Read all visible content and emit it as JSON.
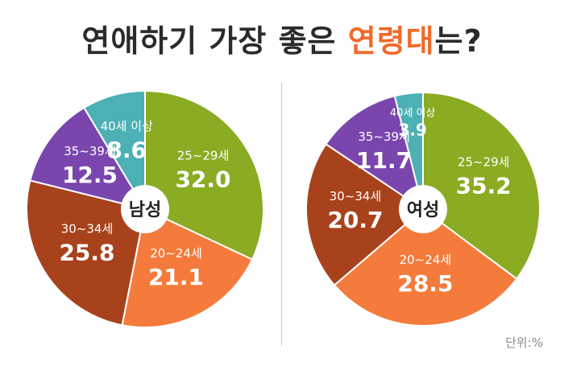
{
  "title": {
    "part1": "연애하기 가장 좋은 ",
    "highlight": "연령대",
    "part2": "는?"
  },
  "unit_label": "단위:%",
  "colors": {
    "accent": "#f06a2a",
    "title": "#2b2b2b"
  },
  "chart_data": [
    {
      "type": "pie",
      "center_label": "남성",
      "slices": [
        {
          "label": "25~29세",
          "value": 32.0,
          "color": "#8aab22"
        },
        {
          "label": "20~24세",
          "value": 21.1,
          "color": "#f47b3c"
        },
        {
          "label": "30~34세",
          "value": 25.8,
          "color": "#a8421c"
        },
        {
          "label": "35~39세",
          "value": 12.5,
          "color": "#7a46ad"
        },
        {
          "label": "40세 이상",
          "value": 8.6,
          "color": "#4cb0b5"
        }
      ]
    },
    {
      "type": "pie",
      "center_label": "여성",
      "slices": [
        {
          "label": "25~29세",
          "value": 35.2,
          "color": "#8aab22"
        },
        {
          "label": "20~24세",
          "value": 28.5,
          "color": "#f47b3c"
        },
        {
          "label": "30~34세",
          "value": 20.7,
          "color": "#a8421c"
        },
        {
          "label": "35~39세",
          "value": 11.7,
          "color": "#7a46ad"
        },
        {
          "label": "40세 이상",
          "value": 3.9,
          "color": "#4cb0b5"
        }
      ]
    }
  ]
}
